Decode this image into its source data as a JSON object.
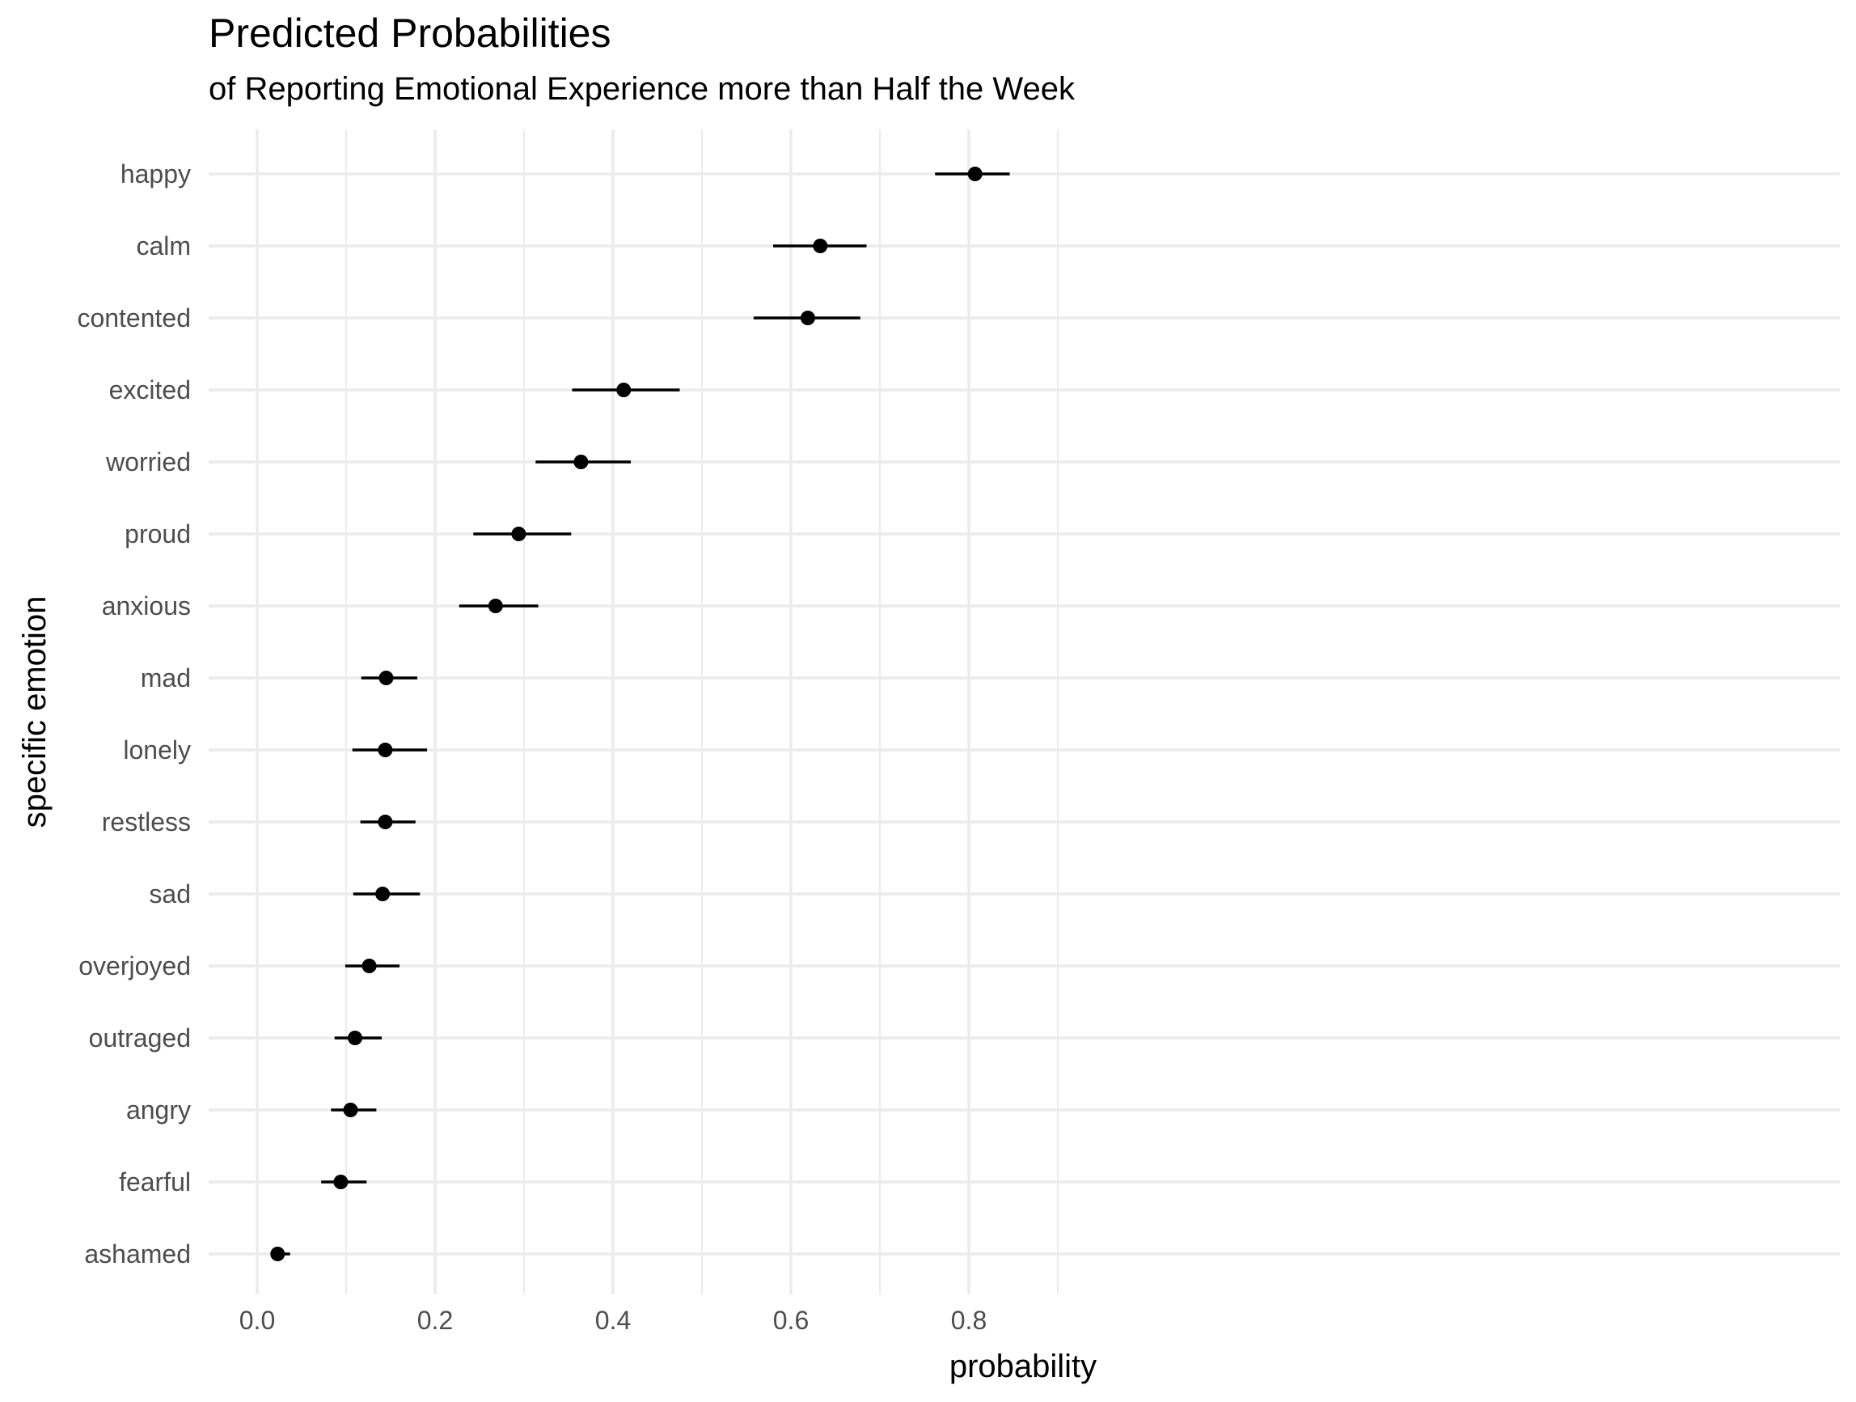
{
  "chart_data": {
    "type": "dot-interval",
    "title": "Predicted Probabilities",
    "subtitle": "of Reporting Emotional Experience more than Half the Week",
    "xlabel": "probability",
    "ylabel": "specific emotion",
    "xlim": [
      -0.03,
      0.89
    ],
    "x_ticks": [
      0.0,
      0.2,
      0.4,
      0.6,
      0.8
    ],
    "x_tick_labels": [
      "0.0",
      "0.2",
      "0.4",
      "0.6",
      "0.8"
    ],
    "grid": true,
    "categories": [
      "happy",
      "calm",
      "contented",
      "excited",
      "worried",
      "proud",
      "anxious",
      "mad",
      "lonely",
      "restless",
      "sad",
      "overjoyed",
      "outraged",
      "angry",
      "fearful",
      "ashamed"
    ],
    "estimates": [
      0.807,
      0.633,
      0.619,
      0.412,
      0.364,
      0.294,
      0.268,
      0.145,
      0.144,
      0.144,
      0.141,
      0.126,
      0.11,
      0.105,
      0.094,
      0.023
    ],
    "lower": [
      0.762,
      0.58,
      0.558,
      0.354,
      0.313,
      0.243,
      0.227,
      0.117,
      0.107,
      0.116,
      0.108,
      0.099,
      0.087,
      0.083,
      0.072,
      0.015
    ],
    "upper": [
      0.846,
      0.685,
      0.678,
      0.475,
      0.42,
      0.353,
      0.316,
      0.18,
      0.191,
      0.178,
      0.183,
      0.16,
      0.14,
      0.134,
      0.123,
      0.037
    ],
    "colors": {
      "point": "#000000",
      "interval": "#000000",
      "grid": "#ebebeb",
      "tick_text": "#4d4d4d"
    }
  }
}
